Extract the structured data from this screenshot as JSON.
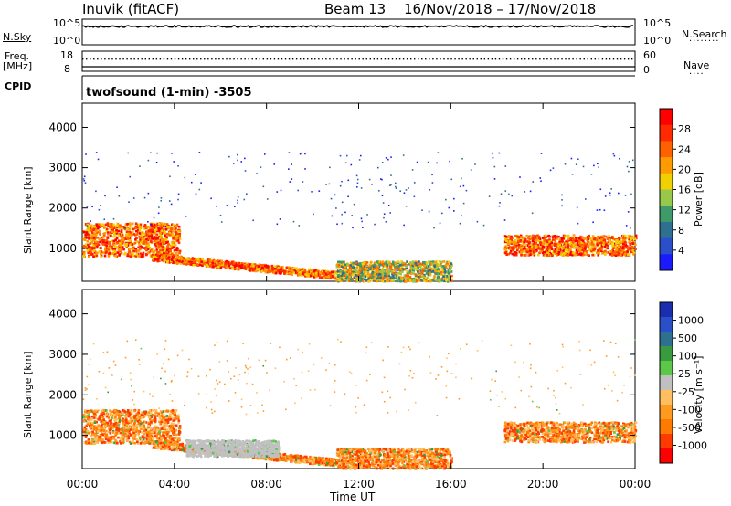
{
  "header": {
    "station": "Inuvik (fitACF)",
    "beam": "Beam 13",
    "dates": "16/Nov/2018 – 17/Nov/2018"
  },
  "aux_panels": {
    "nsky_label": "N.Sky",
    "nsky_ticks": [
      "10^5",
      "10^0"
    ],
    "nsearch_label": "N.Search",
    "nsearch_ticks": [
      "10^5",
      "10^0"
    ],
    "freq_label": "Freq.",
    "freq_unit": "[MHz]",
    "freq_ticks": [
      "18",
      "8"
    ],
    "nave_label": "Nave",
    "nave_ticks": [
      "60",
      "0"
    ],
    "cpid_label": "CPID",
    "cpid_text": "twofsound (1-min) -3505"
  },
  "x_axis": {
    "label": "Time UT",
    "ticks": [
      "00:00",
      "04:00",
      "08:00",
      "12:00",
      "16:00",
      "20:00",
      "00:00"
    ]
  },
  "colors": {
    "power_scale": [
      "#1a1aff",
      "#2a4fc9",
      "#2f6f8f",
      "#3f9a6a",
      "#98c84a",
      "#f0d000",
      "#ff9a00",
      "#ff6000",
      "#ff2a00",
      "#ff0000"
    ],
    "velocity_scale": [
      "#ff0000",
      "#ff3a00",
      "#ff7a00",
      "#ff9a20",
      "#ffbf60",
      "#c0c0c0",
      "#5cc84a",
      "#3a9a40",
      "#2f6f8f",
      "#2a4fc9",
      "#1a2fb0"
    ]
  },
  "chart_data": [
    {
      "type": "heatmap",
      "title": "Power",
      "xlabel": "Time UT",
      "ylabel": "Slant Range [km]",
      "xlim": [
        0,
        24
      ],
      "ylim": [
        180,
        4600
      ],
      "yticks": [
        "1000",
        "2000",
        "3000",
        "4000"
      ],
      "colorbar": {
        "label": "Power [dB]",
        "range": [
          0,
          30
        ],
        "ticks": [
          "28",
          "24",
          "20",
          "16",
          "12",
          "8",
          "4"
        ]
      },
      "regions": [
        {
          "name": "early-scatter",
          "t": [
            0.0,
            4.2
          ],
          "range": [
            820,
            1650
          ],
          "level": "high"
        },
        {
          "name": "descending-band",
          "t": [
            3.0,
            11.0
          ],
          "range": [
            300,
            800
          ],
          "level": "high"
        },
        {
          "name": "near-range",
          "t": [
            11.0,
            16.0
          ],
          "range": [
            200,
            700
          ],
          "level": "mid"
        },
        {
          "name": "late-scatter",
          "t": [
            18.3,
            24.0
          ],
          "range": [
            850,
            1350
          ],
          "level": "high"
        },
        {
          "name": "far-range-sparse",
          "t": [
            0.0,
            24.0
          ],
          "range": [
            1500,
            3400
          ],
          "level": "low"
        }
      ]
    },
    {
      "type": "heatmap",
      "title": "Velocity",
      "xlabel": "Time UT",
      "ylabel": "Slant Range [km]",
      "xlim": [
        0,
        24
      ],
      "ylim": [
        180,
        4600
      ],
      "yticks": [
        "1000",
        "2000",
        "3000",
        "4000"
      ],
      "colorbar": {
        "label": "Velocity [m s⁻¹]",
        "range": [
          -1000,
          1000
        ],
        "ticks": [
          "1000",
          "500",
          "100",
          "25",
          "-25",
          "-100",
          "-500",
          "-1000"
        ]
      },
      "regions": [
        {
          "name": "early-scatter",
          "t": [
            0.0,
            4.2
          ],
          "range": [
            820,
            1650
          ],
          "value": -300
        },
        {
          "name": "descending-band",
          "t": [
            3.0,
            11.0
          ],
          "range": [
            300,
            800
          ],
          "value": -200
        },
        {
          "name": "ground-scatter",
          "t": [
            4.5,
            8.5
          ],
          "range": [
            500,
            900
          ],
          "value": 0
        },
        {
          "name": "near-range",
          "t": [
            11.0,
            16.0
          ],
          "range": [
            200,
            700
          ],
          "value": -150
        },
        {
          "name": "late-scatter",
          "t": [
            18.3,
            24.0
          ],
          "range": [
            850,
            1350
          ],
          "value": -250
        },
        {
          "name": "far-range-sparse",
          "t": [
            0.0,
            24.0
          ],
          "range": [
            1500,
            3400
          ],
          "value": -100
        }
      ]
    }
  ]
}
